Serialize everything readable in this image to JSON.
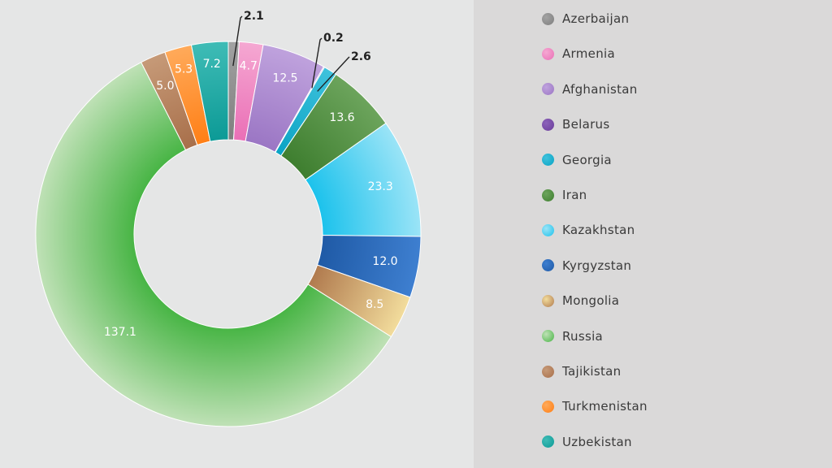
{
  "chart_data": {
    "type": "pie",
    "subtype": "donut",
    "title": "",
    "legend_position": "right",
    "slices": [
      {
        "name": "Azerbaijan",
        "value": 2.1,
        "label": "2.1",
        "label_style": "callout",
        "color": "#7f7f7f",
        "color_light": "#a2a2a2"
      },
      {
        "name": "Armenia",
        "value": 4.7,
        "label": "4.7",
        "label_style": "inside",
        "color": "#ea6fb6",
        "color_light": "#f5a8d2"
      },
      {
        "name": "Afghanistan",
        "value": 12.5,
        "label": "12.5",
        "label_style": "inside",
        "color": "#9b76c4",
        "color_light": "#bfa2dd"
      },
      {
        "name": "Belarus",
        "value": 0.2,
        "label": "0.2",
        "label_style": "callout",
        "color": "#6a3d9a",
        "color_light": "#8c62ba"
      },
      {
        "name": "Georgia",
        "value": 2.6,
        "label": "2.6",
        "label_style": "callout",
        "color": "#0aa3c4",
        "color_light": "#3fc2dc"
      },
      {
        "name": "Iran",
        "value": 13.6,
        "label": "13.6",
        "label_style": "inside",
        "color": "#3e7e2f",
        "color_light": "#6ca45c"
      },
      {
        "name": "Kazakhstan",
        "value": 23.3,
        "label": "23.3",
        "label_style": "inside",
        "color": "#1cc2ec",
        "color_light": "#9be4f7"
      },
      {
        "name": "Kyrgyzstan",
        "value": 12.0,
        "label": "12.0",
        "label_style": "inside",
        "color": "#1f5aa6",
        "color_light": "#3e7fd0"
      },
      {
        "name": "Mongolia",
        "value": 8.5,
        "label": "8.5",
        "label_style": "inside",
        "color": "#b07a4e",
        "color_light": "#f2dc9c"
      },
      {
        "name": "Russia",
        "value": 137.1,
        "label": "137.1",
        "label_style": "inside",
        "color": "#48b545",
        "color_light": "#bfe1b6"
      },
      {
        "name": "Tajikistan",
        "value": 5.0,
        "label": "5.0",
        "label_style": "inside",
        "color": "#a86f4a",
        "color_light": "#c69a78"
      },
      {
        "name": "Turkmenistan",
        "value": 5.3,
        "label": "5.3",
        "label_style": "inside",
        "color": "#ff7f16",
        "color_light": "#ffaa5a"
      },
      {
        "name": "Uzbekistan",
        "value": 7.2,
        "label": "7.2",
        "label_style": "inside",
        "color": "#0c9a96",
        "color_light": "#3fbcb6"
      }
    ]
  }
}
